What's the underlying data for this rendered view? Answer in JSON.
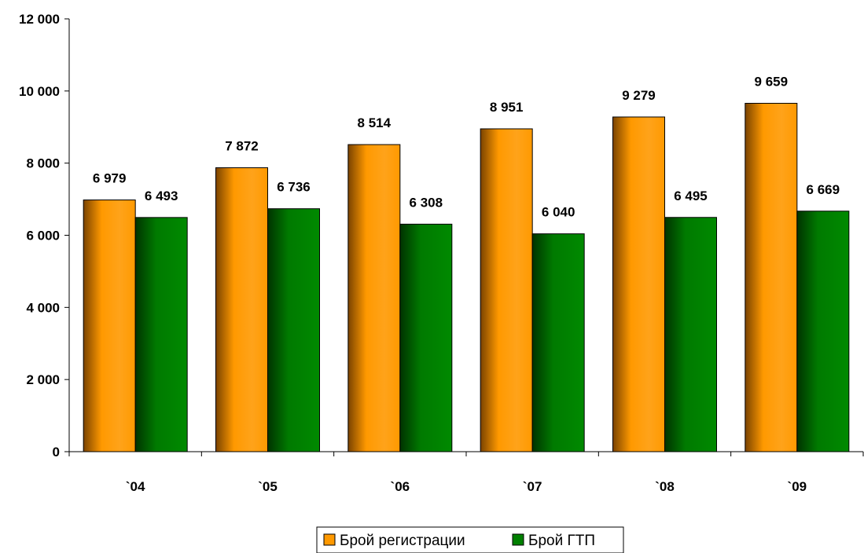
{
  "chart_data": {
    "type": "bar",
    "categories": [
      "`04",
      "`05",
      "`06",
      "`07",
      "`08",
      "`09"
    ],
    "series": [
      {
        "name": "Брой регистрации",
        "values": [
          6979,
          7872,
          8514,
          8951,
          9279,
          9659
        ],
        "labels": [
          "6 979",
          "7 872",
          "8 514",
          "8 951",
          "9 279",
          "9 659"
        ],
        "color": "#FF9900"
      },
      {
        "name": "Брой ГТП",
        "values": [
          6493,
          6736,
          6308,
          6040,
          6495,
          6669
        ],
        "labels": [
          "6 493",
          "6 736",
          "6 308",
          "6 040",
          "6 495",
          "6 669"
        ],
        "color": "#008000"
      }
    ],
    "y_ticks": [
      {
        "value": 0,
        "label": "0"
      },
      {
        "value": 2000,
        "label": "2 000"
      },
      {
        "value": 4000,
        "label": "4 000"
      },
      {
        "value": 6000,
        "label": "6 000"
      },
      {
        "value": 8000,
        "label": "8 000"
      },
      {
        "value": 10000,
        "label": "10 000"
      },
      {
        "value": 12000,
        "label": "12 000"
      }
    ],
    "ylim": [
      0,
      12000
    ],
    "title": "",
    "xlabel": "",
    "ylabel": "",
    "grid": false,
    "legend": "bottom-center"
  }
}
